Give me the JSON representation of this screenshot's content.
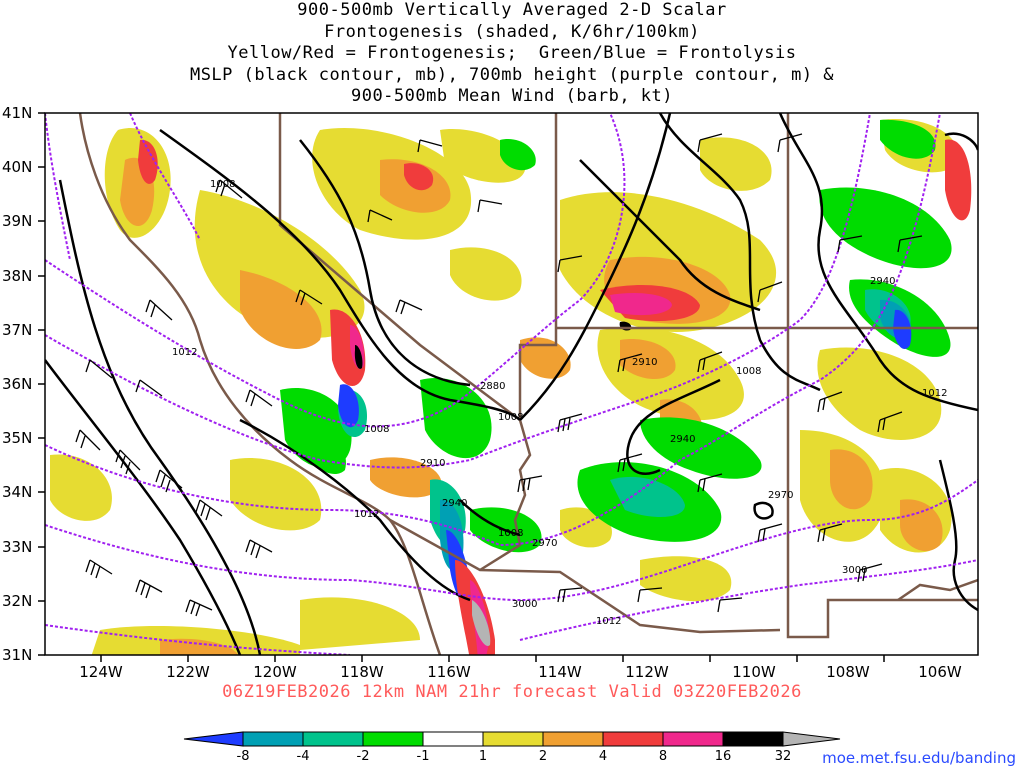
{
  "title_lines": [
    "900-500mb Vertically Averaged 2-D Scalar",
    "Frontogenesis (shaded, K/6hr/100km)",
    "Yellow/Red = Frontogenesis;  Green/Blue = Frontolysis",
    "MSLP (black contour, mb), 700mb height (purple contour, m) &",
    "900-500mb Mean Wind (barb, kt)"
  ],
  "forecast_line": "06Z19FEB2026 12km NAM 21hr forecast Valid 03Z20FEB2026",
  "credit": "moe.met.fsu.edu/banding",
  "lat_labels": [
    "41N",
    "40N",
    "39N",
    "38N",
    "37N",
    "36N",
    "35N",
    "34N",
    "33N",
    "32N",
    "31N"
  ],
  "lon_labels": [
    "124W",
    "122W",
    "120W",
    "118W",
    "116W",
    "114W",
    "112W",
    "110W",
    "108W",
    "106W"
  ],
  "mslp_labels": [
    "1008",
    "1012",
    "1008",
    "1008",
    "1008",
    "1012",
    "1012",
    "1008",
    "1012"
  ],
  "height_labels": [
    "2880",
    "2910",
    "2910",
    "2940",
    "2940",
    "2970",
    "2970",
    "3000",
    "3000",
    "2940"
  ],
  "colorbar": {
    "ticks": [
      "-8",
      "-4",
      "-2",
      "-1",
      "1",
      "2",
      "4",
      "8",
      "16",
      "32"
    ],
    "colors": [
      "#1e3cff",
      "#00a0b4",
      "#00c38c",
      "#00dc00",
      "#ffffff",
      "#e6dc32",
      "#f0a032",
      "#f03c3c",
      "#f0288c",
      "#000000",
      "#b4b4b4"
    ]
  },
  "colors": {
    "mslp": "#000000",
    "height": "#a020f0",
    "borders": "#7a5a4a",
    "forecast_text": "#ff5a5a",
    "credit_text": "#2a4aff"
  }
}
